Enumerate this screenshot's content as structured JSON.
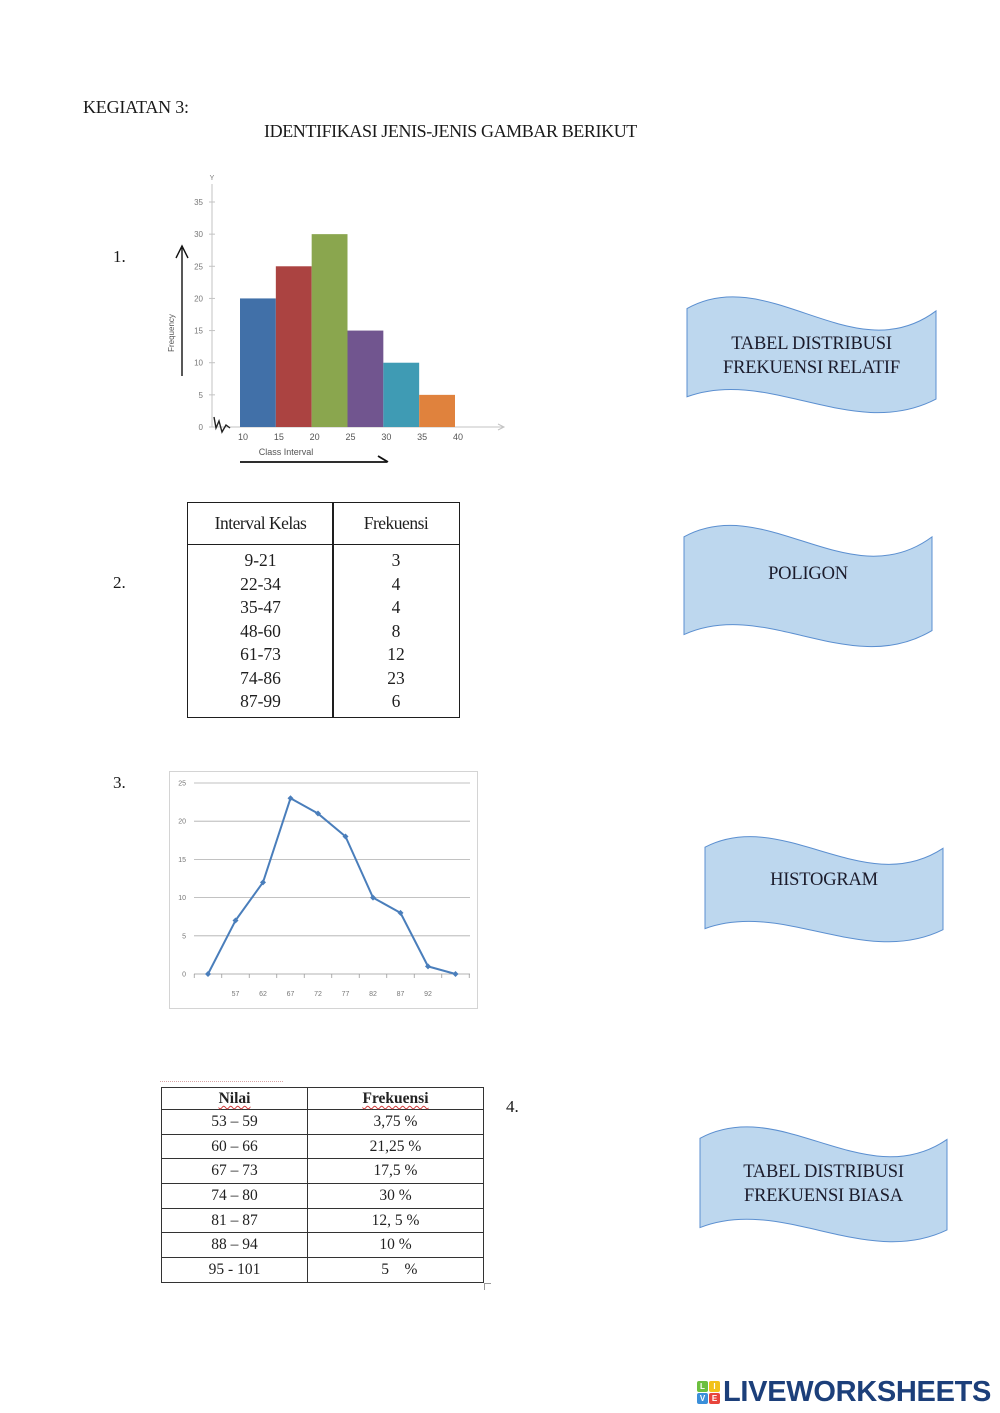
{
  "worksheet": {
    "activity_label": "KEGIATAN 3:",
    "instruction": "IDENTIFIKASI JENIS-JENIS GAMBAR BERIKUT"
  },
  "items": [
    {
      "number": "1."
    },
    {
      "number": "2."
    },
    {
      "number": "3."
    },
    {
      "number": "4."
    }
  ],
  "answer_options": [
    {
      "lines": [
        "TABEL DISTRIBUSI",
        "FREKUENSI RELATIF"
      ]
    },
    {
      "lines": [
        "POLIGON"
      ]
    },
    {
      "lines": [
        "HISTOGRAM"
      ]
    },
    {
      "lines": [
        "TABEL DISTRIBUSI",
        "FREKUENSI BIASA"
      ]
    }
  ],
  "option_style": {
    "fill": "#bdd7ee",
    "stroke": "#5b8fd0"
  },
  "table_frekuensi": {
    "headers": [
      "Interval Kelas",
      "Frekuensi"
    ],
    "rows": [
      {
        "interval": "9-21",
        "frekuensi": "3"
      },
      {
        "interval": "22-34",
        "frekuensi": "4"
      },
      {
        "interval": "35-47",
        "frekuensi": "4"
      },
      {
        "interval": "48-60",
        "frekuensi": "8"
      },
      {
        "interval": "61-73",
        "frekuensi": "12"
      },
      {
        "interval": "74-86",
        "frekuensi": "23"
      },
      {
        "interval": "87-99",
        "frekuensi": "6"
      }
    ]
  },
  "table_relatif": {
    "headers": [
      "Nilai",
      "Frekuensi"
    ],
    "rows": [
      {
        "nilai": "53 – 59",
        "frekuensi": "3,75 %"
      },
      {
        "nilai": "60 – 66",
        "frekuensi": "21,25 %"
      },
      {
        "nilai": "67 – 73",
        "frekuensi": "17,5 %"
      },
      {
        "nilai": "74 – 80",
        "frekuensi": "30 %"
      },
      {
        "nilai": "81 – 87",
        "frekuensi": "12, 5 %"
      },
      {
        "nilai": "88 – 94",
        "frekuensi": "10 %"
      },
      {
        "nilai": "95 - 101",
        "frekuensi": "  5    %"
      }
    ]
  },
  "chart_data": [
    {
      "type": "bar",
      "title": "",
      "xlabel": "Class Interval",
      "ylabel": "Frequency",
      "y_axis_letter": "Y",
      "categories": [
        "10-15",
        "15-20",
        "20-25",
        "25-30",
        "30-35",
        "35-40"
      ],
      "bins": [
        [
          10,
          15
        ],
        [
          15,
          20
        ],
        [
          20,
          25
        ],
        [
          25,
          30
        ],
        [
          30,
          35
        ],
        [
          35,
          40
        ]
      ],
      "values": [
        20,
        25,
        30,
        15,
        10,
        5
      ],
      "x_ticks": [
        10,
        15,
        20,
        25,
        30,
        35,
        40
      ],
      "y_ticks": [
        0,
        5,
        10,
        15,
        20,
        25,
        30,
        35
      ],
      "ylim": [
        0,
        35
      ],
      "grid": false,
      "legend": null,
      "bar_colors": [
        "#4170a8",
        "#ab4341",
        "#8aa64e",
        "#71558f",
        "#3f9bb4",
        "#e0823d"
      ]
    },
    {
      "type": "line",
      "title": "",
      "xlabel": "",
      "ylabel": "",
      "x_labels": [
        "",
        "57",
        "62",
        "67",
        "72",
        "77",
        "82",
        "87",
        "92",
        ""
      ],
      "values": [
        0,
        7,
        12,
        23,
        21,
        18,
        10,
        8,
        1,
        0
      ],
      "y_ticks": [
        0,
        5,
        10,
        15,
        20,
        25
      ],
      "ylim": [
        0,
        25
      ],
      "grid": true,
      "legend": null,
      "line_color": "#4a7ebb"
    }
  ],
  "footer": {
    "brand": "LIVEWORKSHEETS",
    "brand_color": "#1c3f7a",
    "logo_tiles": [
      {
        "letter": "L",
        "color": "#6cbf3f"
      },
      {
        "letter": "I",
        "color": "#f2c21b"
      },
      {
        "letter": "V",
        "color": "#3b8fd9"
      },
      {
        "letter": "E",
        "color": "#e8453c"
      }
    ]
  }
}
